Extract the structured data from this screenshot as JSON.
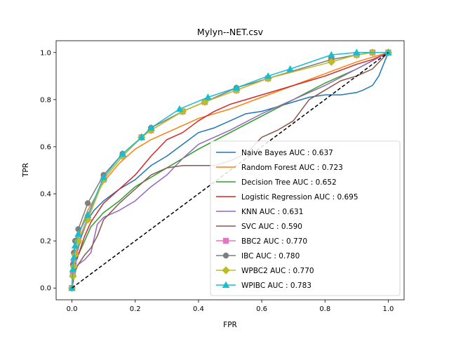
{
  "chart_data": {
    "type": "line",
    "title": "Mylyn--NET.csv",
    "xlabel": "FPR",
    "ylabel": "TPR",
    "xlim": [
      -0.05,
      1.05
    ],
    "ylim": [
      -0.05,
      1.05
    ],
    "xticks": [
      "0.0",
      "0.2",
      "0.4",
      "0.6",
      "0.8",
      "1.0"
    ],
    "yticks": [
      "0.0",
      "0.2",
      "0.4",
      "0.6",
      "0.8",
      "1.0"
    ],
    "legend_position": "lower right",
    "grid": false,
    "diagonal": {
      "x": [
        0,
        1
      ],
      "y": [
        0,
        1
      ],
      "color": "#000000",
      "style": "dashed"
    },
    "series": [
      {
        "name": "Naive Bayes AUC : 0.637",
        "color": "#1f77b4",
        "marker": "none",
        "x": [
          0,
          0.005,
          0.01,
          0.02,
          0.03,
          0.05,
          0.07,
          0.1,
          0.15,
          0.2,
          0.25,
          0.3,
          0.35,
          0.4,
          0.45,
          0.5,
          0.55,
          0.6,
          0.65,
          0.7,
          0.75,
          0.8,
          0.85,
          0.9,
          0.92,
          0.95,
          0.97,
          1.0
        ],
        "y": [
          0,
          0.05,
          0.1,
          0.17,
          0.22,
          0.29,
          0.33,
          0.37,
          0.42,
          0.46,
          0.52,
          0.56,
          0.61,
          0.66,
          0.68,
          0.71,
          0.74,
          0.75,
          0.77,
          0.79,
          0.81,
          0.82,
          0.82,
          0.83,
          0.84,
          0.86,
          0.9,
          1.0
        ]
      },
      {
        "name": "Random Forest AUC : 0.723",
        "color": "#ff7f0e",
        "marker": "none",
        "x": [
          0,
          0.005,
          0.01,
          0.02,
          0.03,
          0.05,
          0.08,
          0.1,
          0.15,
          0.2,
          0.25,
          0.3,
          0.35,
          0.4,
          0.5,
          0.6,
          0.7,
          0.8,
          0.9,
          1.0
        ],
        "y": [
          0,
          0.08,
          0.13,
          0.2,
          0.26,
          0.33,
          0.4,
          0.45,
          0.53,
          0.59,
          0.63,
          0.66,
          0.69,
          0.72,
          0.76,
          0.81,
          0.86,
          0.91,
          0.96,
          1.0
        ]
      },
      {
        "name": "Decision Tree AUC : 0.652",
        "color": "#2ca02c",
        "marker": "none",
        "x": [
          0,
          0.005,
          0.01,
          0.02,
          0.04,
          0.06,
          0.1,
          0.15,
          0.2,
          0.3,
          0.4,
          0.5,
          0.6,
          0.7,
          0.8,
          0.9,
          1.0
        ],
        "y": [
          0,
          0.06,
          0.1,
          0.14,
          0.2,
          0.26,
          0.32,
          0.37,
          0.43,
          0.51,
          0.59,
          0.66,
          0.73,
          0.8,
          0.87,
          0.93,
          1.0
        ]
      },
      {
        "name": "Logistic Regression AUC : 0.695",
        "color": "#d62728",
        "marker": "none",
        "x": [
          0,
          0.005,
          0.01,
          0.02,
          0.04,
          0.06,
          0.08,
          0.1,
          0.15,
          0.2,
          0.25,
          0.3,
          0.35,
          0.4,
          0.45,
          0.5,
          0.55,
          0.6,
          0.65,
          0.7,
          0.8,
          0.9,
          0.95,
          1.0
        ],
        "y": [
          0,
          0.07,
          0.1,
          0.14,
          0.22,
          0.28,
          0.32,
          0.36,
          0.42,
          0.48,
          0.56,
          0.63,
          0.66,
          0.71,
          0.75,
          0.78,
          0.8,
          0.82,
          0.84,
          0.86,
          0.9,
          0.95,
          0.97,
          1.0
        ]
      },
      {
        "name": "KNN AUC : 0.631",
        "color": "#9467bd",
        "marker": "none",
        "x": [
          0,
          0.01,
          0.02,
          0.04,
          0.06,
          0.08,
          0.1,
          0.15,
          0.2,
          0.25,
          0.3,
          0.35,
          0.4,
          0.5,
          0.6,
          0.7,
          0.8,
          0.9,
          1.0
        ],
        "y": [
          0,
          0.08,
          0.1,
          0.12,
          0.15,
          0.27,
          0.3,
          0.33,
          0.37,
          0.43,
          0.48,
          0.55,
          0.61,
          0.67,
          0.74,
          0.8,
          0.86,
          0.93,
          1.0
        ]
      },
      {
        "name": "SVC AUC : 0.590",
        "color": "#8c564b",
        "marker": "none",
        "x": [
          0,
          0.01,
          0.02,
          0.04,
          0.06,
          0.08,
          0.1,
          0.15,
          0.2,
          0.25,
          0.3,
          0.35,
          0.4,
          0.45,
          0.5,
          0.55,
          0.6,
          0.65,
          0.7,
          0.75,
          0.8,
          0.85,
          0.9,
          0.95,
          1.0
        ],
        "y": [
          0,
          0.07,
          0.1,
          0.14,
          0.17,
          0.22,
          0.29,
          0.36,
          0.42,
          0.48,
          0.51,
          0.52,
          0.52,
          0.52,
          0.54,
          0.57,
          0.64,
          0.67,
          0.71,
          0.8,
          0.84,
          0.88,
          0.9,
          0.93,
          1.0
        ]
      },
      {
        "name": "BBC2 AUC : 0.770",
        "color": "#e377c2",
        "marker": "square",
        "x": [
          0,
          0.003,
          0.006,
          0.01,
          0.02,
          0.05,
          0.1,
          0.16,
          0.22,
          0.25,
          0.35,
          0.42,
          0.52,
          0.62,
          0.82,
          0.9,
          0.95,
          1.0
        ],
        "y": [
          0,
          0.06,
          0.11,
          0.15,
          0.2,
          0.3,
          0.46,
          0.56,
          0.64,
          0.67,
          0.75,
          0.79,
          0.84,
          0.89,
          0.97,
          0.99,
          1.0,
          1.0
        ]
      },
      {
        "name": "IBC AUC : 0.780",
        "color": "#7f7f7f",
        "marker": "circle",
        "x": [
          0,
          0.003,
          0.006,
          0.01,
          0.02,
          0.05,
          0.1,
          0.16,
          0.22,
          0.25,
          0.35,
          0.42,
          0.52,
          0.62,
          0.82,
          0.9,
          0.95,
          1.0
        ],
        "y": [
          0,
          0.1,
          0.15,
          0.2,
          0.25,
          0.36,
          0.48,
          0.57,
          0.64,
          0.68,
          0.75,
          0.79,
          0.85,
          0.89,
          0.97,
          0.99,
          1.0,
          1.0
        ]
      },
      {
        "name": "WPBC2 AUC : 0.770",
        "color": "#bcbd22",
        "marker": "diamond",
        "x": [
          0,
          0.003,
          0.006,
          0.01,
          0.02,
          0.05,
          0.1,
          0.16,
          0.22,
          0.25,
          0.35,
          0.42,
          0.52,
          0.62,
          0.82,
          0.9,
          0.95,
          1.0
        ],
        "y": [
          0,
          0.05,
          0.09,
          0.14,
          0.2,
          0.29,
          0.46,
          0.56,
          0.64,
          0.67,
          0.75,
          0.79,
          0.84,
          0.89,
          0.96,
          0.99,
          1.0,
          1.0
        ]
      },
      {
        "name": "WPIBC AUC : 0.783",
        "color": "#17becf",
        "marker": "triangle",
        "x": [
          0,
          0.003,
          0.006,
          0.01,
          0.02,
          0.05,
          0.1,
          0.16,
          0.22,
          0.25,
          0.34,
          0.43,
          0.52,
          0.62,
          0.69,
          0.82,
          0.9,
          1.0
        ],
        "y": [
          0,
          0.08,
          0.13,
          0.18,
          0.23,
          0.31,
          0.47,
          0.57,
          0.64,
          0.68,
          0.76,
          0.81,
          0.85,
          0.9,
          0.93,
          0.99,
          1.0,
          1.0
        ]
      }
    ]
  }
}
